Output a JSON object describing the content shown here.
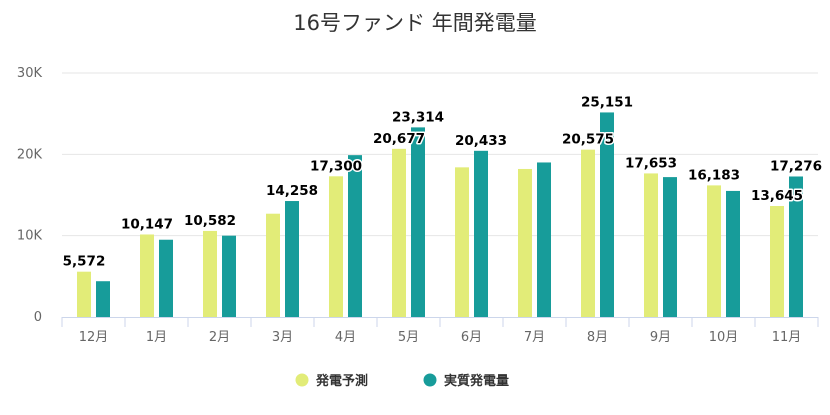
{
  "chart_data": {
    "type": "bar",
    "title": "16号ファンド 年間発電量",
    "categories": [
      "12月",
      "1月",
      "2月",
      "3月",
      "4月",
      "5月",
      "6月",
      "7月",
      "8月",
      "9月",
      "10月",
      "11月"
    ],
    "series": [
      {
        "name": "発電予測",
        "color": "#e2ec78",
        "values": [
          5572,
          10147,
          10582,
          12700,
          17300,
          20677,
          18400,
          18200,
          20575,
          17653,
          16183,
          13645
        ],
        "labels": [
          "5,572",
          "10,147",
          "10,582",
          "",
          "17,300",
          "20,677",
          "",
          "",
          "20,575",
          "17,653",
          "16,183",
          "13,645"
        ]
      },
      {
        "name": "実質発電量",
        "color": "#179c9a",
        "values": [
          4400,
          9500,
          10000,
          14258,
          19900,
          23314,
          20433,
          19000,
          25151,
          17200,
          15500,
          17276
        ],
        "labels": [
          "",
          "",
          "",
          "14,258",
          "",
          "23,314",
          "20,433",
          "",
          "25,151",
          "",
          "",
          "17,276"
        ]
      }
    ],
    "y_ticks": [
      {
        "value": 0,
        "label": "0"
      },
      {
        "value": 10000,
        "label": "10K"
      },
      {
        "value": 20000,
        "label": "20K"
      },
      {
        "value": 30000,
        "label": "30K"
      }
    ],
    "ylim": [
      0,
      30000
    ],
    "grid": true,
    "legend_position": "bottom-center"
  }
}
